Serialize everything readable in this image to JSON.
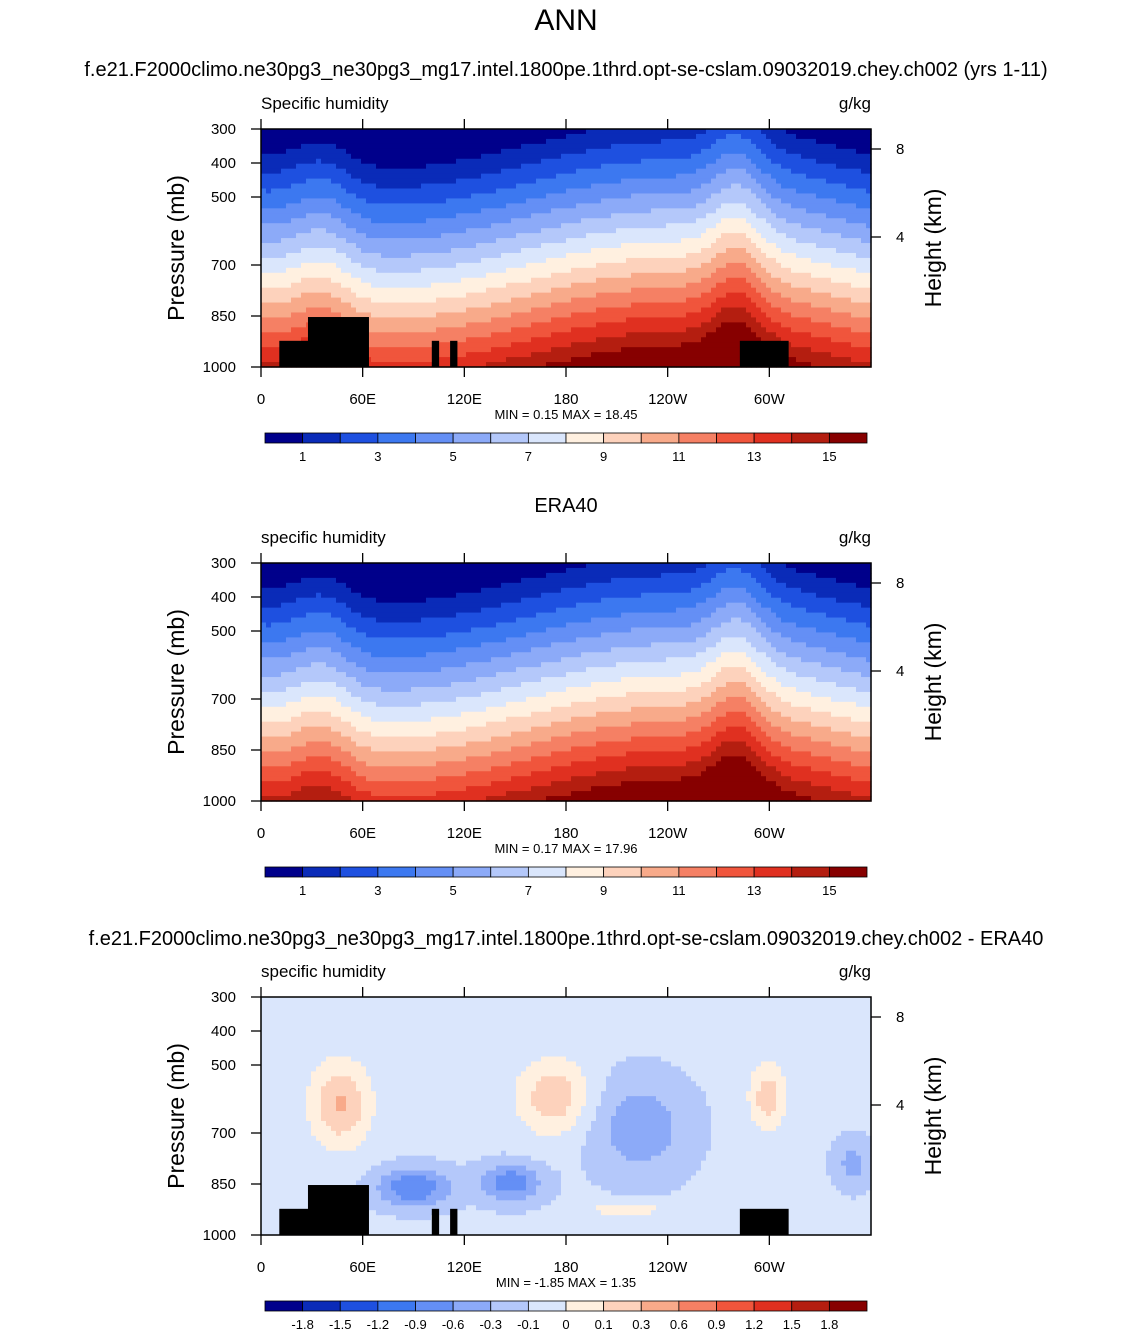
{
  "page": {
    "main_title": "ANN",
    "panel_titles": [
      "f.e21.F2000climo.ne30pg3_ne30pg3_mg17.intel.1800pe.1thrd.opt-se-cslam.09032019.chey.ch002 (yrs 1-11)",
      "ERA40",
      "f.e21.F2000climo.ne30pg3_ne30pg3_mg17.intel.1800pe.1thrd.opt-se-cslam.09032019.chey.ch002 - ERA40"
    ]
  },
  "chart_data": [
    {
      "type": "heatmap",
      "title": "f.e21.F2000climo.ne30pg3_ne30pg3_mg17.intel.1800pe.1thrd.opt-se-cslam.09032019.chey.ch002 (yrs 1-11)",
      "variable_label": "Specific humidity",
      "units": "g/kg",
      "ylabel": "Pressure (mb)",
      "ylabel_right": "Height (km)",
      "x_ticks": [
        "0",
        "60E",
        "120E",
        "180",
        "120W",
        "60W"
      ],
      "y_ticks": [
        "300",
        "400",
        "500",
        "700",
        "850",
        "1000"
      ],
      "y_ticks_right": [
        "8",
        "4"
      ],
      "ylim": [
        1000,
        300
      ],
      "stats": {
        "min_label": "MIN =",
        "min": "0.15",
        "max_label": "MAX =",
        "max": "18.45"
      },
      "colorbar_labels": [
        "1",
        "3",
        "5",
        "7",
        "9",
        "11",
        "13",
        "15"
      ],
      "colorbar_colors": [
        "#00008b",
        "#0a2bb8",
        "#1e50e0",
        "#3c78f0",
        "#648ff5",
        "#8caaf8",
        "#b4c8fa",
        "#dae6fc",
        "#fff0e0",
        "#fdd2bc",
        "#f8aa8a",
        "#f58064",
        "#f0553c",
        "#e03020",
        "#b41e10",
        "#870000"
      ]
    },
    {
      "type": "heatmap",
      "title": "ERA40",
      "variable_label": "specific humidity",
      "units": "g/kg",
      "ylabel": "Pressure (mb)",
      "ylabel_right": "Height (km)",
      "x_ticks": [
        "0",
        "60E",
        "120E",
        "180",
        "120W",
        "60W"
      ],
      "y_ticks": [
        "300",
        "400",
        "500",
        "700",
        "850",
        "1000"
      ],
      "y_ticks_right": [
        "8",
        "4"
      ],
      "ylim": [
        1000,
        300
      ],
      "stats": {
        "min_label": "MIN =",
        "min": "0.17",
        "max_label": "MAX =",
        "max": "17.96"
      },
      "colorbar_labels": [
        "1",
        "3",
        "5",
        "7",
        "9",
        "11",
        "13",
        "15"
      ],
      "colorbar_colors": [
        "#00008b",
        "#0a2bb8",
        "#1e50e0",
        "#3c78f0",
        "#648ff5",
        "#8caaf8",
        "#b4c8fa",
        "#dae6fc",
        "#fff0e0",
        "#fdd2bc",
        "#f8aa8a",
        "#f58064",
        "#f0553c",
        "#e03020",
        "#b41e10",
        "#870000"
      ]
    },
    {
      "type": "heatmap",
      "title": "f.e21.F2000climo.ne30pg3_ne30pg3_mg17.intel.1800pe.1thrd.opt-se-cslam.09032019.chey.ch002 - ERA40",
      "variable_label": "specific humidity",
      "units": "g/kg",
      "ylabel": "Pressure (mb)",
      "ylabel_right": "Height (km)",
      "x_ticks": [
        "0",
        "60E",
        "120E",
        "180",
        "120W",
        "60W"
      ],
      "y_ticks": [
        "300",
        "400",
        "500",
        "700",
        "850",
        "1000"
      ],
      "y_ticks_right": [
        "8",
        "4"
      ],
      "ylim": [
        1000,
        300
      ],
      "stats": {
        "min_label": "MIN =",
        "min": "-1.85",
        "max_label": "MAX =",
        "max": "1.35"
      },
      "colorbar_labels": [
        "-1.8",
        "-1.5",
        "-1.2",
        "-0.9",
        "-0.6",
        "-0.3",
        "-0.1",
        "0",
        "0.1",
        "0.3",
        "0.6",
        "0.9",
        "1.2",
        "1.5",
        "1.8"
      ],
      "colorbar_colors": [
        "#00008b",
        "#0a2bb8",
        "#1e50e0",
        "#3c78f0",
        "#648ff5",
        "#8caaf8",
        "#b4c8fa",
        "#dae6fc",
        "#fff0e0",
        "#fdd2bc",
        "#f8aa8a",
        "#f58064",
        "#f0553c",
        "#e03020",
        "#b41e10",
        "#870000"
      ]
    }
  ]
}
